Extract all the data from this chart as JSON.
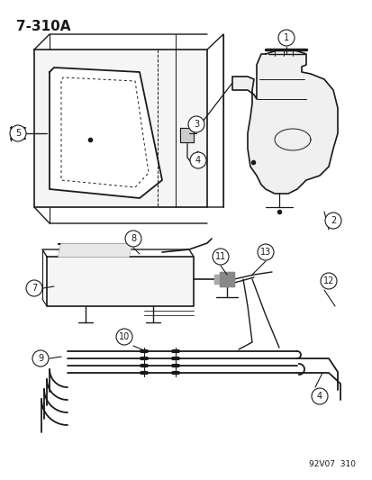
{
  "title": "7-310A",
  "footer": "92V07  310",
  "bg_color": "#ffffff",
  "line_color": "#1a1a1a",
  "fig_width": 4.14,
  "fig_height": 5.33,
  "dpi": 100
}
